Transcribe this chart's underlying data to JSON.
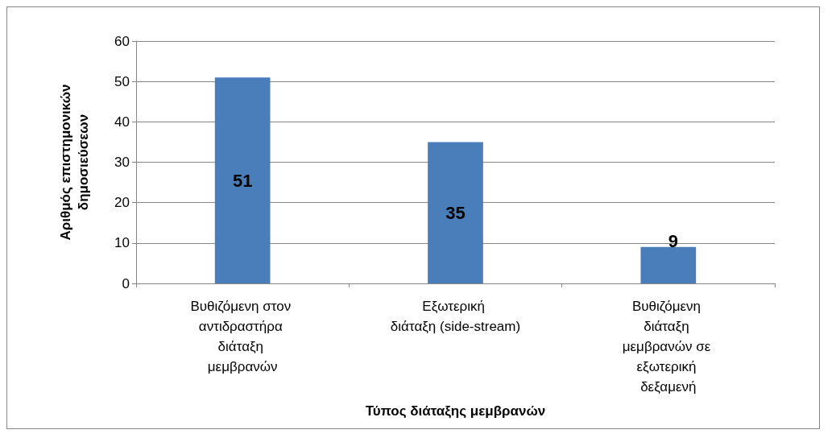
{
  "chart_data": {
    "type": "bar",
    "xlabel": "Τύπος διάταξης μεμβρανών",
    "ylabel": "Αριθμός επιστημονικών δημοσιεύσεων",
    "categories": [
      "Βυθιζόμενη στον αντιδραστήρα διάταξη μεμβρανών",
      "Εξωτερική διάταξη (side-stream)",
      "Βυθιζόμενη διάταξη μεμβρανών σε εξωτερική δεξαμενή"
    ],
    "values": [
      51,
      35,
      9
    ],
    "color": "#4a7ebb",
    "ylim": [
      0,
      60
    ],
    "yticks": [
      0,
      10,
      20,
      30,
      40,
      50,
      60
    ],
    "grid": "y",
    "data_labels": true
  }
}
